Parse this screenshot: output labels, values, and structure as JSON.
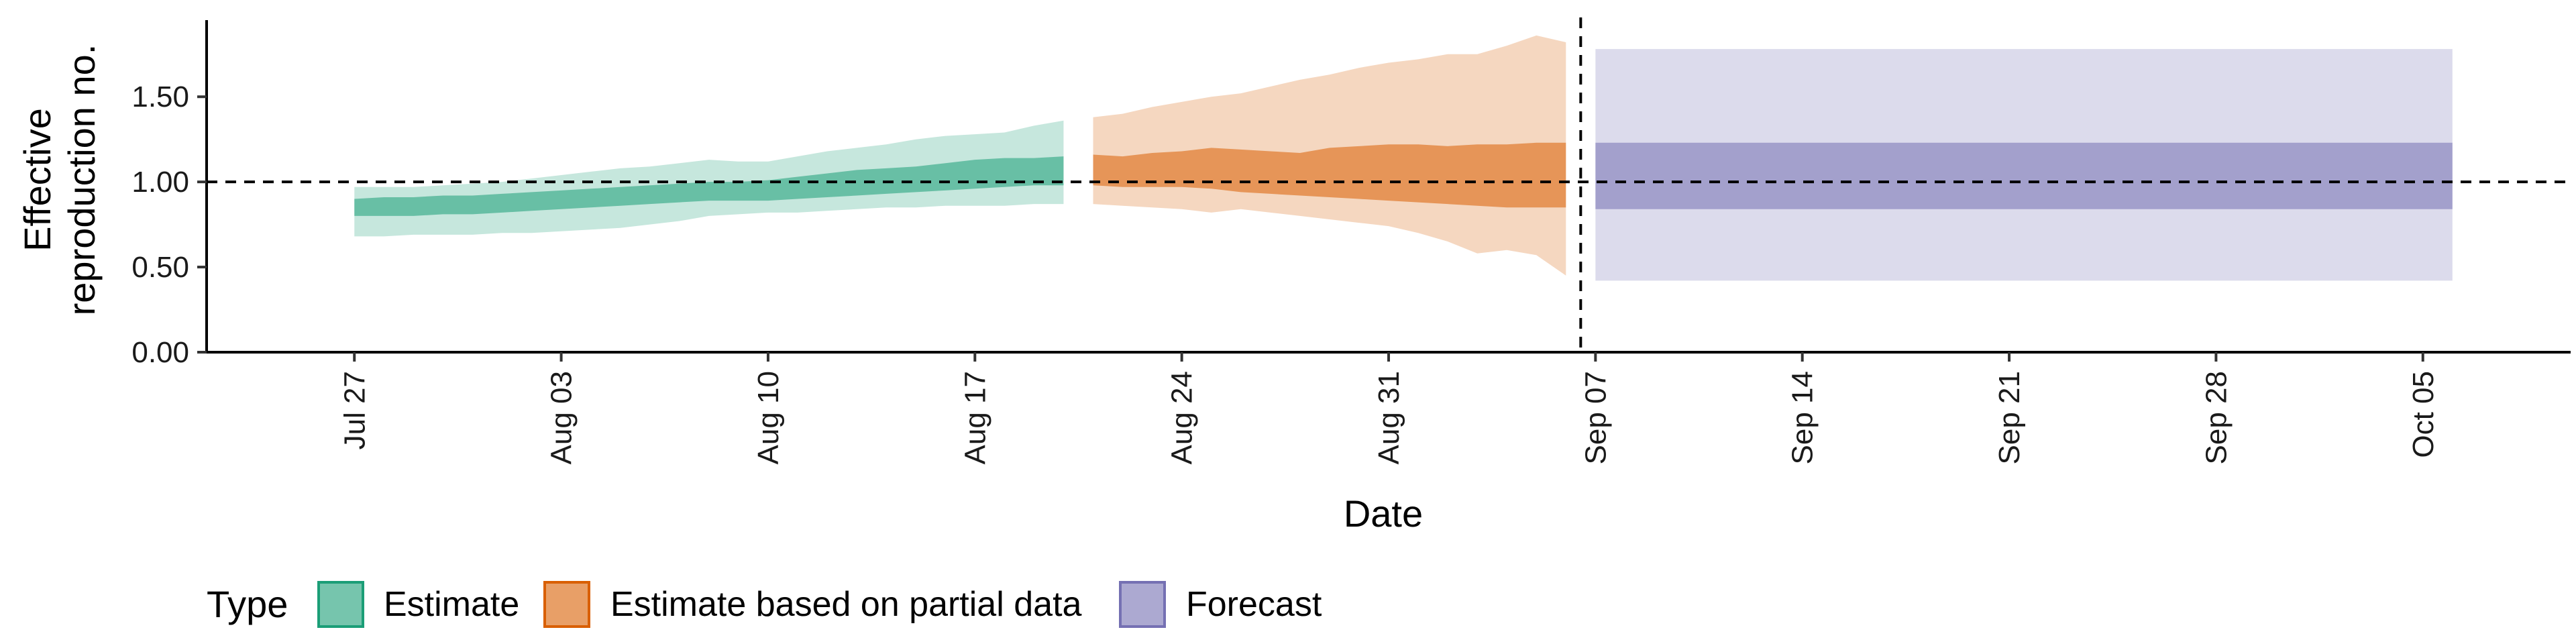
{
  "chart_data": {
    "type": "area",
    "xlabel": "Date",
    "ylabel": "Effective reproduction no.",
    "ylabel_lines": [
      "Effective",
      "reproduction no."
    ],
    "ylim": [
      0,
      1.95
    ],
    "xlim": [
      "2020-07-22",
      "2020-10-10"
    ],
    "yticks": [
      0.0,
      0.5,
      1.0,
      1.5
    ],
    "ytick_labels": [
      "0.00",
      "0.50",
      "1.00",
      "1.50"
    ],
    "xticks": [
      "2020-07-27",
      "2020-08-03",
      "2020-08-10",
      "2020-08-17",
      "2020-08-24",
      "2020-08-31",
      "2020-09-07",
      "2020-09-14",
      "2020-09-21",
      "2020-09-28",
      "2020-10-05"
    ],
    "xtick_labels": [
      "Jul 27",
      "Aug 03",
      "Aug 10",
      "Aug 17",
      "Aug 24",
      "Aug 31",
      "Sep 07",
      "Sep 14",
      "Sep 21",
      "Sep 28",
      "Oct 05"
    ],
    "reference_line_y": 1.0,
    "vline_date": "2020-09-06",
    "grid": false,
    "legend": {
      "title": "Type",
      "position": "bottom-left",
      "entries": [
        {
          "label": "Estimate",
          "color": "#1b9e77"
        },
        {
          "label": "Estimate based on partial data",
          "color": "#d95f02"
        },
        {
          "label": "Forecast",
          "color": "#7570b3"
        }
      ]
    },
    "series": [
      {
        "name": "Estimate",
        "color": "#1b9e77",
        "dates": [
          "2020-07-27",
          "2020-07-28",
          "2020-07-29",
          "2020-07-30",
          "2020-07-31",
          "2020-08-01",
          "2020-08-02",
          "2020-08-03",
          "2020-08-04",
          "2020-08-05",
          "2020-08-06",
          "2020-08-07",
          "2020-08-08",
          "2020-08-09",
          "2020-08-10",
          "2020-08-11",
          "2020-08-12",
          "2020-08-13",
          "2020-08-14",
          "2020-08-15",
          "2020-08-16",
          "2020-08-17",
          "2020-08-18",
          "2020-08-19",
          "2020-08-20"
        ],
        "lower90": [
          0.68,
          0.68,
          0.69,
          0.69,
          0.69,
          0.7,
          0.7,
          0.71,
          0.72,
          0.73,
          0.75,
          0.77,
          0.8,
          0.81,
          0.82,
          0.82,
          0.83,
          0.84,
          0.85,
          0.85,
          0.86,
          0.86,
          0.86,
          0.87,
          0.87
        ],
        "lower50": [
          0.8,
          0.8,
          0.8,
          0.81,
          0.81,
          0.82,
          0.83,
          0.84,
          0.85,
          0.86,
          0.87,
          0.88,
          0.89,
          0.89,
          0.89,
          0.9,
          0.91,
          0.92,
          0.93,
          0.94,
          0.95,
          0.96,
          0.97,
          0.98,
          0.98
        ],
        "upper50": [
          0.9,
          0.91,
          0.91,
          0.92,
          0.92,
          0.93,
          0.94,
          0.95,
          0.96,
          0.97,
          0.98,
          0.99,
          1.0,
          1.0,
          1.01,
          1.03,
          1.05,
          1.07,
          1.08,
          1.09,
          1.11,
          1.13,
          1.14,
          1.14,
          1.15
        ],
        "upper90": [
          0.97,
          0.97,
          0.97,
          0.98,
          0.99,
          1.0,
          1.02,
          1.04,
          1.06,
          1.08,
          1.09,
          1.11,
          1.13,
          1.12,
          1.12,
          1.15,
          1.18,
          1.2,
          1.22,
          1.25,
          1.27,
          1.28,
          1.29,
          1.33,
          1.36
        ]
      },
      {
        "name": "Estimate based on partial data",
        "color": "#d95f02",
        "dates": [
          "2020-08-21",
          "2020-08-22",
          "2020-08-23",
          "2020-08-24",
          "2020-08-25",
          "2020-08-26",
          "2020-08-27",
          "2020-08-28",
          "2020-08-29",
          "2020-08-30",
          "2020-08-31",
          "2020-09-01",
          "2020-09-02",
          "2020-09-03",
          "2020-09-04",
          "2020-09-05",
          "2020-09-06"
        ],
        "lower90": [
          0.87,
          0.86,
          0.85,
          0.84,
          0.82,
          0.84,
          0.82,
          0.8,
          0.78,
          0.76,
          0.74,
          0.7,
          0.65,
          0.58,
          0.6,
          0.57,
          0.45
        ],
        "lower50": [
          0.98,
          0.97,
          0.97,
          0.97,
          0.96,
          0.94,
          0.93,
          0.92,
          0.91,
          0.9,
          0.89,
          0.88,
          0.87,
          0.86,
          0.85,
          0.85,
          0.85
        ],
        "upper50": [
          1.16,
          1.15,
          1.17,
          1.18,
          1.2,
          1.19,
          1.18,
          1.17,
          1.2,
          1.21,
          1.22,
          1.22,
          1.21,
          1.22,
          1.22,
          1.23,
          1.23
        ],
        "upper90": [
          1.38,
          1.4,
          1.44,
          1.47,
          1.5,
          1.52,
          1.56,
          1.6,
          1.63,
          1.67,
          1.7,
          1.72,
          1.75,
          1.75,
          1.8,
          1.86,
          1.82
        ]
      },
      {
        "name": "Forecast",
        "color": "#7570b3",
        "dates": [
          "2020-09-07",
          "2020-10-06"
        ],
        "lower90": [
          0.42,
          0.42
        ],
        "lower50": [
          0.84,
          0.84
        ],
        "upper50": [
          1.23,
          1.23
        ],
        "upper90": [
          1.78,
          1.78
        ]
      }
    ]
  }
}
